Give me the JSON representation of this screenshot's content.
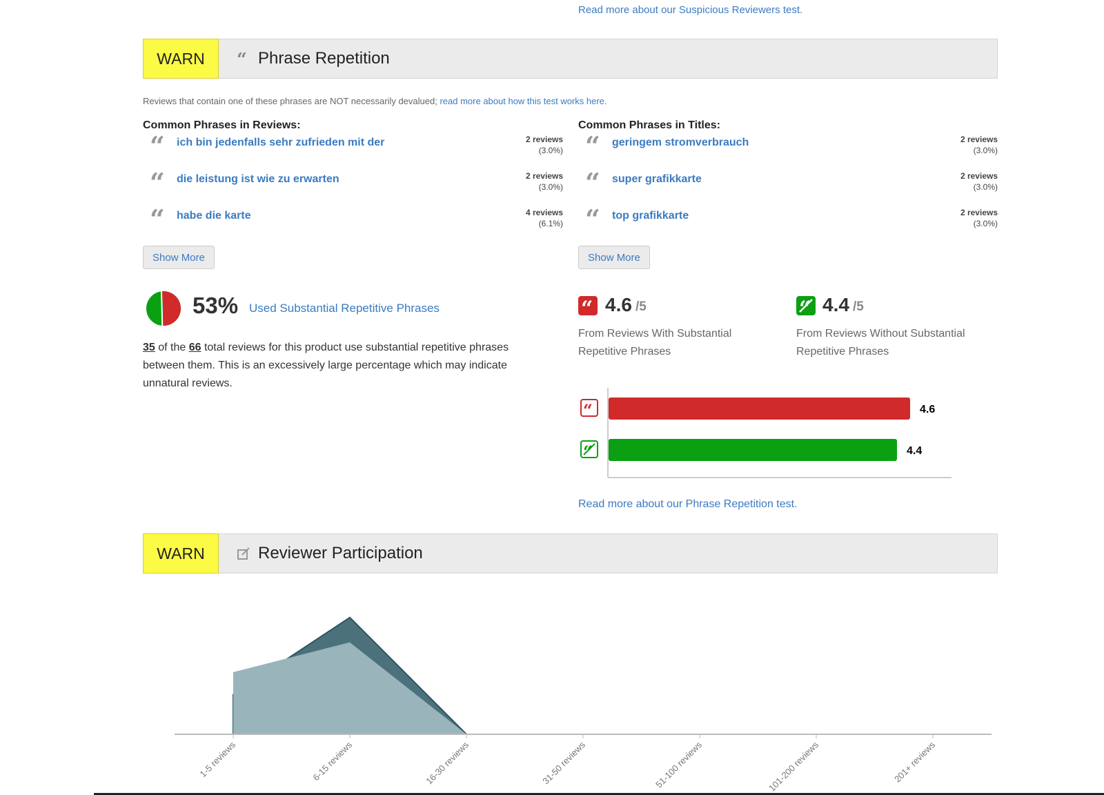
{
  "top_link": "Read more about our Suspicious Reviewers test.",
  "phrase_section": {
    "badge": "WARN",
    "icon": "quote-icon",
    "title": "Phrase Repetition",
    "note_text": "Reviews that contain one of these phrases are NOT necessarily devalued; ",
    "note_link": "read more about how this test works here.",
    "reviews_heading": "Common Phrases in Reviews:",
    "titles_heading": "Common Phrases in Titles:",
    "review_phrases": [
      {
        "text": "ich bin jedenfalls sehr zufrieden mit der",
        "count": "2 reviews",
        "pct": "(3.0%)"
      },
      {
        "text": "die leistung ist wie zu erwarten",
        "count": "2 reviews",
        "pct": "(3.0%)"
      },
      {
        "text": "habe die karte",
        "count": "4 reviews",
        "pct": "(6.1%)"
      }
    ],
    "title_phrases": [
      {
        "text": "geringem stromverbrauch",
        "count": "2 reviews",
        "pct": "(3.0%)"
      },
      {
        "text": "super grafikkarte",
        "count": "2 reviews",
        "pct": "(3.0%)"
      },
      {
        "text": "top grafikkarte",
        "count": "2 reviews",
        "pct": "(3.0%)"
      }
    ],
    "show_more": "Show More",
    "percent": "53%",
    "percent_value": 53,
    "percent_label": "Used Substantial Repetitive Phrases",
    "para_count": "35",
    "para_of": " of the ",
    "para_total": "66",
    "para_rest": " total reviews for this product use substantial repetitive phrases between them. This is an excessively large percentage which may indicate unnatural reviews.",
    "score_with": {
      "value": "4.6",
      "denom": "/5",
      "label": "From Reviews With Substantial Repetitive Phrases",
      "color": "#d02a2a"
    },
    "score_without": {
      "value": "4.4",
      "denom": "/5",
      "label": "From Reviews Without Substantial Repetitive Phrases",
      "color": "#0aa012"
    },
    "bar_chart": {
      "max": 5,
      "bars": [
        {
          "label": "4.6",
          "value": 4.6,
          "color": "#d02a2a",
          "icon": "quote-icon"
        },
        {
          "label": "4.4",
          "value": 4.4,
          "color": "#0aa012",
          "icon": "no-quote-icon"
        }
      ]
    },
    "read_more": "Read more about our Phrase Repetition test."
  },
  "participation_section": {
    "badge": "WARN",
    "icon": "edit-icon",
    "title": "Reviewer Participation"
  },
  "chart_data": {
    "type": "area",
    "categories": [
      "1-5 reviews",
      "6-15 reviews",
      "16-30 reviews",
      "31-50 reviews",
      "51-100 reviews",
      "101-200 reviews",
      "201+ reviews"
    ],
    "series": [
      {
        "values": [
          0.5,
          0.74,
          0,
          0,
          0,
          0,
          0
        ],
        "color": "#9ab4bb"
      },
      {
        "values": [
          0.32,
          0.94,
          0,
          0,
          0,
          0,
          0
        ],
        "color": "#4a717c"
      }
    ],
    "ylim": [
      0,
      1
    ],
    "grid": false
  }
}
